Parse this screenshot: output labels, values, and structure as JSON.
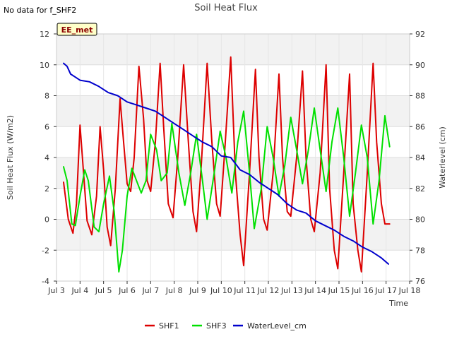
{
  "note": "No data for f_SHF2",
  "badge": "EE_met",
  "chart_data": {
    "type": "line",
    "title": "Soil Heat Flux",
    "xlabel": "Time",
    "ylabel": "Soil Heat Flux (W/m2)",
    "y2label": "Waterlevel (cm)",
    "xlim": [
      3,
      18
    ],
    "ylim": [
      -4,
      12
    ],
    "y2lim": [
      76,
      92
    ],
    "x_ticks": [
      3,
      4,
      5,
      6,
      7,
      8,
      9,
      10,
      11,
      12,
      13,
      14,
      15,
      16,
      17,
      18
    ],
    "x_tick_labels": [
      "Jul 3",
      "Jul 4",
      "Jul 5",
      "Jul 6",
      "Jul 7",
      "Jul 8",
      "Jul 9",
      "Jul 10",
      "Jul 11",
      "Jul 12",
      "Jul 13",
      "Jul 14",
      "Jul 15",
      "Jul 16",
      "Jul 17",
      "Jul 18"
    ],
    "y_ticks": [
      -4,
      -2,
      0,
      2,
      4,
      6,
      8,
      10,
      12
    ],
    "y_tick_labels": [
      "-4",
      "-2",
      "0",
      "2",
      "4",
      "6",
      "8",
      "10",
      "12"
    ],
    "y2_ticks": [
      76,
      78,
      80,
      82,
      84,
      86,
      88,
      90,
      92
    ],
    "y2_tick_labels": [
      "76",
      "78",
      "80",
      "82",
      "84",
      "86",
      "88",
      "90",
      "92"
    ],
    "legend_position": "bottom",
    "series": [
      {
        "name": "SHF1",
        "color": "#dd0000",
        "axis": "left",
        "x": [
          3.3,
          3.5,
          3.7,
          3.85,
          4.0,
          4.15,
          4.3,
          4.5,
          4.7,
          4.85,
          5.0,
          5.15,
          5.3,
          5.5,
          5.7,
          5.85,
          6.0,
          6.15,
          6.3,
          6.5,
          6.7,
          6.85,
          7.0,
          7.2,
          7.4,
          7.55,
          7.75,
          7.95,
          8.15,
          8.4,
          8.6,
          8.8,
          8.95,
          9.15,
          9.4,
          9.6,
          9.8,
          9.95,
          10.15,
          10.4,
          10.6,
          10.8,
          10.95,
          11.2,
          11.45,
          11.6,
          11.8,
          11.95,
          12.2,
          12.45,
          12.6,
          12.8,
          12.95,
          13.2,
          13.45,
          13.6,
          13.8,
          13.95,
          14.2,
          14.45,
          14.6,
          14.8,
          14.95,
          15.2,
          15.45,
          15.6,
          15.8,
          15.95,
          16.2,
          16.45,
          16.6,
          16.8,
          16.95,
          17.15
        ],
        "y": [
          2.4,
          0.0,
          -0.9,
          1.0,
          6.1,
          3.0,
          -0.1,
          -1.0,
          1.5,
          6.0,
          3.2,
          -0.5,
          -1.7,
          2.0,
          7.8,
          5.0,
          2.3,
          1.8,
          4.0,
          9.9,
          6.5,
          2.5,
          1.8,
          5.0,
          10.1,
          6.0,
          1.0,
          0.1,
          4.0,
          10.0,
          5.0,
          0.5,
          -0.8,
          3.5,
          10.1,
          5.0,
          1.0,
          0.2,
          4.5,
          10.5,
          3.0,
          -1.0,
          -3.0,
          3.0,
          9.7,
          4.0,
          0.0,
          -0.7,
          3.0,
          9.4,
          4.0,
          0.5,
          0.2,
          4.0,
          9.6,
          4.0,
          0.0,
          -0.8,
          3.0,
          10.0,
          2.0,
          -2.0,
          -3.2,
          3.0,
          9.4,
          1.0,
          -2.0,
          -3.4,
          3.0,
          10.1,
          5.0,
          1.0,
          -0.3,
          -0.3
        ]
      },
      {
        "name": "SHF3",
        "color": "#00e000",
        "axis": "left",
        "x": [
          3.3,
          3.45,
          3.65,
          3.8,
          4.0,
          4.2,
          4.35,
          4.6,
          4.8,
          5.0,
          5.25,
          5.45,
          5.65,
          5.8,
          6.0,
          6.2,
          6.4,
          6.6,
          6.8,
          7.0,
          7.25,
          7.45,
          7.7,
          7.9,
          8.2,
          8.45,
          8.7,
          8.95,
          9.2,
          9.4,
          9.7,
          9.95,
          10.2,
          10.45,
          10.7,
          10.95,
          11.2,
          11.4,
          11.7,
          11.95,
          12.2,
          12.45,
          12.7,
          12.95,
          13.2,
          13.45,
          13.7,
          13.95,
          14.2,
          14.45,
          14.7,
          14.95,
          15.2,
          15.45,
          15.7,
          15.95,
          16.2,
          16.45,
          16.7,
          16.95,
          17.15
        ],
        "y": [
          3.4,
          2.5,
          -0.3,
          -0.4,
          1.5,
          3.2,
          2.5,
          -0.5,
          -0.8,
          1.0,
          2.8,
          0.5,
          -3.4,
          -2.0,
          1.5,
          3.3,
          2.5,
          1.7,
          2.5,
          5.5,
          4.5,
          2.5,
          3.0,
          6.2,
          3.0,
          0.9,
          3.0,
          5.5,
          2.5,
          0.0,
          3.0,
          5.7,
          4.0,
          1.7,
          5.0,
          7.0,
          3.0,
          -0.6,
          2.0,
          6.0,
          4.0,
          1.5,
          3.5,
          6.6,
          4.5,
          2.3,
          4.5,
          7.2,
          4.5,
          1.8,
          5.0,
          7.2,
          4.0,
          0.2,
          3.0,
          6.1,
          4.0,
          -0.3,
          2.5,
          6.7,
          4.7
        ]
      },
      {
        "name": "WaterLevel_cm",
        "color": "#0000cc",
        "axis": "right",
        "x": [
          3.3,
          3.45,
          3.6,
          3.8,
          4.0,
          4.4,
          4.8,
          5.2,
          5.6,
          6.0,
          6.4,
          6.8,
          7.2,
          7.6,
          8.0,
          8.4,
          8.8,
          9.2,
          9.6,
          10.0,
          10.4,
          10.8,
          11.2,
          11.6,
          12.0,
          12.4,
          12.8,
          13.2,
          13.6,
          14.0,
          14.4,
          14.8,
          15.2,
          15.6,
          16.0,
          16.4,
          16.8,
          17.1
        ],
        "y": [
          90.1,
          89.9,
          89.4,
          89.2,
          89.0,
          88.9,
          88.6,
          88.2,
          88.0,
          87.6,
          87.4,
          87.2,
          87.0,
          86.6,
          86.2,
          85.8,
          85.4,
          85.0,
          84.7,
          84.1,
          84.0,
          83.2,
          82.9,
          82.4,
          82.0,
          81.6,
          81.0,
          80.6,
          80.4,
          79.9,
          79.6,
          79.3,
          78.9,
          78.6,
          78.2,
          77.9,
          77.5,
          77.1
        ]
      }
    ]
  }
}
